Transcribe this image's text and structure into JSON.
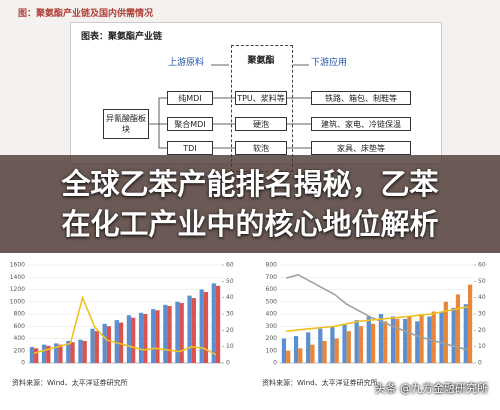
{
  "header": {
    "title": "图：聚氨酯产业链及国内供需情况"
  },
  "diagram": {
    "title": "图表：聚氨酯产业链",
    "upstream": "上游原料",
    "center": "聚氨酯",
    "downstream": "下游应用",
    "source_block": "异氰酸酯板块",
    "inputs": [
      "纯MDI",
      "聚合MDI",
      "TDI"
    ],
    "products": [
      "TPU、浆料等",
      "硬泡",
      "软泡"
    ],
    "applications": [
      "铁路、箱包、制鞋等",
      "建筑、家电、冷链保温",
      "家具、床垫等"
    ]
  },
  "overlay": {
    "title": "全球乙苯产能排名揭秘，乙苯在化工产业中的核心地位解析"
  },
  "sources": [
    "资料来源：Wind、太平洋证券研究所",
    "资料来源：Wind、太平洋证券研究所"
  ],
  "watermark": "头条 @九方金融研究所",
  "chart_data": [
    {
      "type": "bar",
      "categories": [
        null,
        null,
        null,
        null,
        null,
        null,
        null,
        null,
        null,
        null,
        null,
        null,
        null,
        null,
        null,
        null
      ],
      "series": [
        {
          "type": "bar",
          "color": "#5b8fd0",
          "values": [
            260,
            300,
            320,
            360,
            380,
            560,
            640,
            700,
            780,
            820,
            880,
            950,
            1000,
            1100,
            1200,
            1300
          ]
        },
        {
          "type": "bar",
          "color": "#d9534f",
          "values": [
            240,
            280,
            300,
            340,
            360,
            520,
            600,
            660,
            740,
            800,
            860,
            930,
            980,
            1060,
            1160,
            1260
          ]
        },
        {
          "type": "line",
          "axis": "y2",
          "color": "#f0c020",
          "values": [
            6,
            8,
            10,
            12,
            40,
            22,
            14,
            12,
            10,
            8,
            9,
            8,
            7,
            10,
            9,
            5
          ]
        }
      ],
      "ylim": [
        0,
        1600
      ],
      "yticks": [
        0,
        200,
        400,
        600,
        800,
        1000,
        1200,
        1400,
        1600
      ],
      "y2lim": [
        0,
        60
      ],
      "y2ticks": [
        0,
        10,
        20,
        30,
        40,
        50,
        60
      ],
      "grid": true
    },
    {
      "type": "bar",
      "categories": [
        null,
        null,
        null,
        null,
        null,
        null,
        null,
        null,
        null,
        null,
        null,
        null,
        null,
        null,
        null,
        null
      ],
      "series": [
        {
          "type": "bar",
          "color": "#5b8fd0",
          "values": [
            200,
            220,
            250,
            280,
            300,
            320,
            350,
            380,
            400,
            380,
            360,
            340,
            380,
            420,
            450,
            480
          ]
        },
        {
          "type": "bar",
          "color": "#e8873a",
          "values": [
            100,
            120,
            150,
            180,
            200,
            260,
            300,
            320,
            340,
            360,
            380,
            400,
            420,
            500,
            560,
            640
          ]
        },
        {
          "type": "line",
          "axis": "y2",
          "color": "#a0a0a0",
          "values": [
            52,
            54,
            50,
            46,
            42,
            36,
            32,
            28,
            25,
            22,
            19,
            16,
            14,
            12,
            10,
            8
          ]
        },
        {
          "type": "line",
          "color": "#f0c020",
          "values": [
            260,
            270,
            280,
            290,
            300,
            320,
            340,
            350,
            360,
            370,
            380,
            390,
            400,
            420,
            440,
            460
          ]
        }
      ],
      "ylim": [
        0,
        800
      ],
      "yticks": [
        0,
        100,
        200,
        300,
        400,
        500,
        600,
        700,
        800
      ],
      "y2lim": [
        0,
        60
      ],
      "y2ticks": [
        0,
        10,
        20,
        30,
        40,
        50,
        60
      ],
      "grid": true
    }
  ]
}
